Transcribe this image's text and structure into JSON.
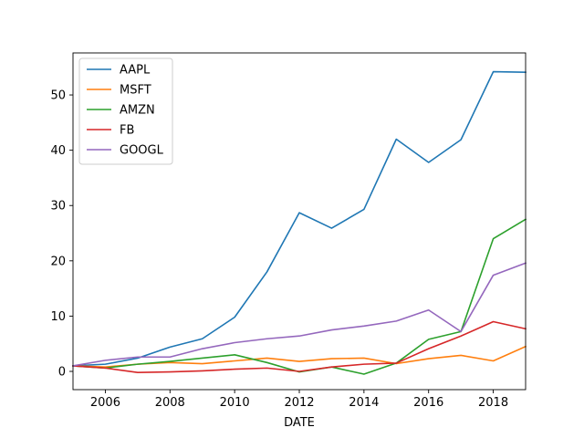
{
  "chart_data": {
    "type": "line",
    "xlabel": "DATE",
    "ylabel": "",
    "title": "",
    "xlim": [
      2005,
      2019
    ],
    "ylim": [
      -3.3,
      57.6
    ],
    "x_ticks": [
      2006,
      2008,
      2010,
      2012,
      2014,
      2016,
      2018
    ],
    "y_ticks": [
      0,
      10,
      20,
      30,
      40,
      50
    ],
    "grid": false,
    "legend_position": "top-left",
    "x": [
      2005,
      2006,
      2007,
      2008,
      2009,
      2010,
      2011,
      2012,
      2013,
      2014,
      2015,
      2016,
      2017,
      2018,
      2019
    ],
    "series": [
      {
        "name": "AAPL",
        "color": "#1f77b4",
        "values": [
          1.0,
          1.3,
          2.4,
          4.4,
          5.9,
          9.8,
          18.0,
          28.7,
          25.9,
          29.3,
          42.0,
          37.8,
          41.9,
          54.2,
          54.1
        ]
      },
      {
        "name": "MSFT",
        "color": "#ff7f0e",
        "values": [
          1.0,
          0.8,
          1.3,
          1.6,
          1.4,
          1.9,
          2.4,
          1.8,
          2.3,
          2.4,
          1.4,
          2.3,
          2.9,
          1.9,
          4.5
        ]
      },
      {
        "name": "AMZN",
        "color": "#2ca02c",
        "values": [
          1.0,
          0.6,
          1.3,
          1.8,
          2.4,
          3.0,
          1.6,
          -0.1,
          0.8,
          -0.5,
          1.5,
          5.8,
          7.2,
          24.0,
          27.5
        ]
      },
      {
        "name": "FB",
        "color": "#d62728",
        "values": [
          1.0,
          0.6,
          -0.2,
          -0.1,
          0.1,
          0.4,
          0.6,
          0.0,
          0.8,
          1.3,
          1.5,
          4.1,
          6.4,
          9.0,
          7.7
        ]
      },
      {
        "name": "GOOGL",
        "color": "#9467bd",
        "values": [
          1.0,
          2.0,
          2.6,
          2.6,
          4.1,
          5.2,
          5.9,
          6.4,
          7.5,
          8.2,
          9.1,
          11.1,
          7.2,
          17.4,
          19.6
        ]
      }
    ]
  }
}
